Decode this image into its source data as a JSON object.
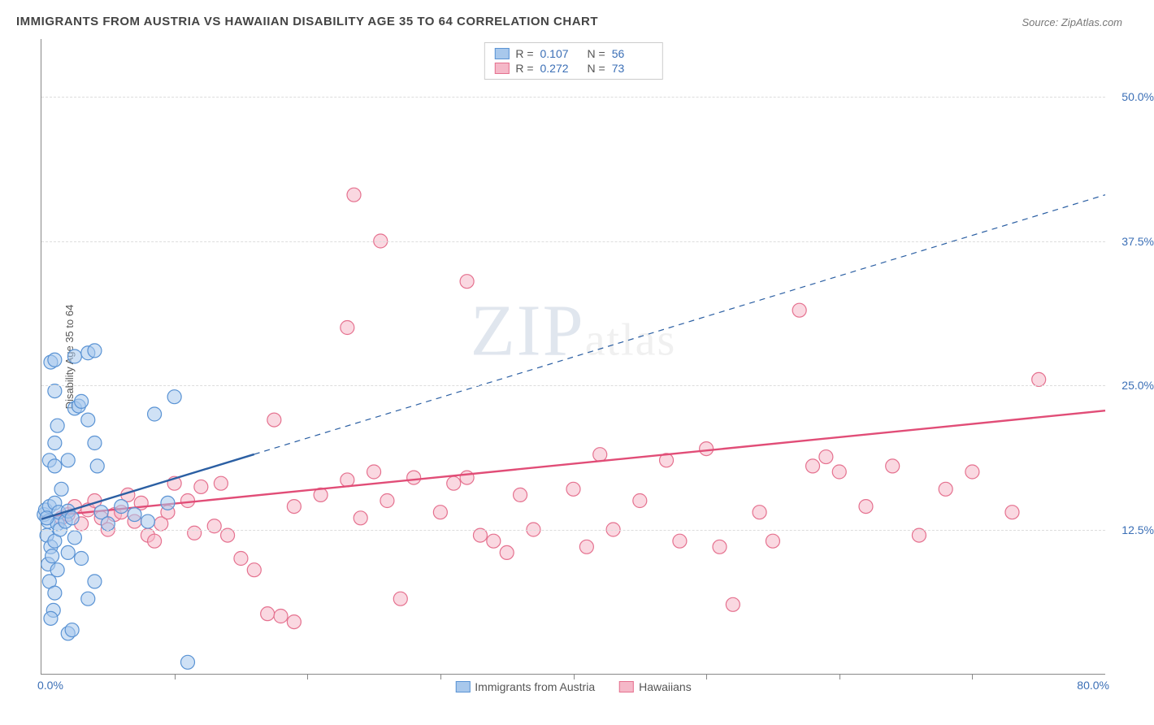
{
  "title": "IMMIGRANTS FROM AUSTRIA VS HAWAIIAN DISABILITY AGE 35 TO 64 CORRELATION CHART",
  "source": "Source: ZipAtlas.com",
  "ylabel": "Disability Age 35 to 64",
  "watermark_a": "ZIP",
  "watermark_b": "atlas",
  "chart": {
    "type": "scatter",
    "xlim": [
      0,
      80
    ],
    "ylim": [
      0,
      55
    ],
    "x_min_label": "0.0%",
    "x_max_label": "80.0%",
    "x_grid_ticks": [
      10,
      20,
      30,
      40,
      50,
      60,
      70
    ],
    "y_grid": [
      {
        "v": 12.5,
        "label": "12.5%"
      },
      {
        "v": 25.0,
        "label": "25.0%"
      },
      {
        "v": 37.5,
        "label": "37.5%"
      },
      {
        "v": 50.0,
        "label": "50.0%"
      }
    ],
    "background_color": "#ffffff",
    "grid_color": "#dddddd",
    "legend_border": "#cccccc",
    "series": [
      {
        "name": "Immigrants from Austria",
        "name_key": "series1_name",
        "fill": "#a8c8ec",
        "stroke": "#5a93d4",
        "fill_opacity": 0.55,
        "line_color": "#2b5fa3",
        "line_width": 2.4,
        "line_dash_after_x": 16,
        "marker_radius": 8.5,
        "r_label": "R =",
        "r_value": "0.107",
        "n_label": "N =",
        "n_value": "56",
        "trend": {
          "x1": 0,
          "y1": 13.4,
          "x2": 80,
          "y2": 41.5
        },
        "points": [
          [
            0.2,
            13.8
          ],
          [
            0.3,
            14.2
          ],
          [
            0.4,
            12.0
          ],
          [
            0.5,
            13.2
          ],
          [
            0.6,
            14.5
          ],
          [
            0.7,
            11.0
          ],
          [
            0.5,
            9.5
          ],
          [
            0.6,
            8.0
          ],
          [
            0.8,
            10.2
          ],
          [
            1.0,
            11.5
          ],
          [
            1.2,
            13.0
          ],
          [
            1.0,
            14.8
          ],
          [
            1.3,
            14.0
          ],
          [
            1.5,
            16.0
          ],
          [
            1.2,
            9.0
          ],
          [
            1.0,
            7.0
          ],
          [
            0.9,
            5.5
          ],
          [
            0.7,
            4.8
          ],
          [
            1.4,
            12.5
          ],
          [
            1.8,
            13.2
          ],
          [
            2.0,
            14.1
          ],
          [
            2.3,
            13.5
          ],
          [
            2.0,
            10.5
          ],
          [
            2.5,
            11.8
          ],
          [
            2.0,
            3.5
          ],
          [
            2.3,
            3.8
          ],
          [
            0.6,
            18.5
          ],
          [
            1.0,
            18.0
          ],
          [
            2.0,
            18.5
          ],
          [
            4.2,
            18.0
          ],
          [
            1.0,
            20.0
          ],
          [
            1.2,
            21.5
          ],
          [
            2.5,
            23.0
          ],
          [
            2.8,
            23.2
          ],
          [
            3.0,
            23.6
          ],
          [
            1.0,
            24.5
          ],
          [
            0.7,
            27.0
          ],
          [
            1.0,
            27.2
          ],
          [
            2.5,
            27.5
          ],
          [
            3.5,
            22.0
          ],
          [
            4.0,
            20.0
          ],
          [
            4.5,
            14.0
          ],
          [
            5.0,
            13.0
          ],
          [
            6.0,
            14.5
          ],
          [
            7.0,
            13.8
          ],
          [
            8.0,
            13.2
          ],
          [
            9.5,
            14.8
          ],
          [
            3.5,
            27.8
          ],
          [
            4.0,
            28.0
          ],
          [
            8.5,
            22.5
          ],
          [
            10.0,
            24.0
          ],
          [
            11.0,
            1.0
          ],
          [
            3.0,
            10.0
          ],
          [
            3.5,
            6.5
          ],
          [
            4.0,
            8.0
          ],
          [
            0.4,
            13.5
          ]
        ]
      },
      {
        "name": "Hawaiians",
        "name_key": "series2_name",
        "fill": "#f5b8c8",
        "stroke": "#e5718f",
        "fill_opacity": 0.55,
        "line_color": "#e14d77",
        "line_width": 2.4,
        "line_dash_after_x": 200,
        "marker_radius": 8.5,
        "r_label": "R =",
        "r_value": "0.272",
        "n_label": "N =",
        "n_value": "73",
        "trend": {
          "x1": 0,
          "y1": 13.6,
          "x2": 80,
          "y2": 22.8
        },
        "points": [
          [
            1.5,
            13.5
          ],
          [
            2.0,
            13.8
          ],
          [
            2.5,
            14.5
          ],
          [
            3.0,
            13.0
          ],
          [
            3.5,
            14.2
          ],
          [
            4.0,
            15.0
          ],
          [
            4.5,
            13.5
          ],
          [
            5.0,
            12.5
          ],
          [
            5.5,
            13.8
          ],
          [
            6.0,
            14.0
          ],
          [
            6.5,
            15.5
          ],
          [
            7.0,
            13.2
          ],
          [
            7.5,
            14.8
          ],
          [
            8.0,
            12.0
          ],
          [
            8.5,
            11.5
          ],
          [
            9.0,
            13.0
          ],
          [
            10.0,
            16.5
          ],
          [
            11.0,
            15.0
          ],
          [
            12.0,
            16.2
          ],
          [
            13.0,
            12.8
          ],
          [
            14.0,
            12.0
          ],
          [
            15.0,
            10.0
          ],
          [
            16.0,
            9.0
          ],
          [
            17.0,
            5.2
          ],
          [
            18.0,
            5.0
          ],
          [
            19.0,
            4.5
          ],
          [
            17.5,
            22.0
          ],
          [
            19.0,
            14.5
          ],
          [
            23.0,
            30.0
          ],
          [
            21.0,
            15.5
          ],
          [
            23.0,
            16.8
          ],
          [
            24.0,
            13.5
          ],
          [
            25.0,
            17.5
          ],
          [
            26.0,
            15.0
          ],
          [
            27.0,
            6.5
          ],
          [
            23.5,
            41.5
          ],
          [
            25.5,
            37.5
          ],
          [
            30.0,
            14.0
          ],
          [
            31.0,
            16.5
          ],
          [
            32.0,
            17.0
          ],
          [
            33.0,
            12.0
          ],
          [
            34.0,
            11.5
          ],
          [
            35.0,
            10.5
          ],
          [
            36.0,
            15.5
          ],
          [
            37.0,
            12.5
          ],
          [
            32.0,
            34.0
          ],
          [
            40.0,
            16.0
          ],
          [
            41.0,
            11.0
          ],
          [
            42.0,
            19.0
          ],
          [
            43.0,
            12.5
          ],
          [
            45.0,
            15.0
          ],
          [
            47.0,
            18.5
          ],
          [
            48.0,
            11.5
          ],
          [
            50.0,
            19.5
          ],
          [
            51.0,
            11.0
          ],
          [
            52.0,
            6.0
          ],
          [
            54.0,
            14.0
          ],
          [
            55.0,
            11.5
          ],
          [
            58.0,
            18.0
          ],
          [
            59.0,
            18.8
          ],
          [
            57.0,
            31.5
          ],
          [
            60.0,
            17.5
          ],
          [
            62.0,
            14.5
          ],
          [
            64.0,
            18.0
          ],
          [
            66.0,
            12.0
          ],
          [
            68.0,
            16.0
          ],
          [
            70.0,
            17.5
          ],
          [
            73.0,
            14.0
          ],
          [
            75.0,
            25.5
          ],
          [
            11.5,
            12.2
          ],
          [
            13.5,
            16.5
          ],
          [
            9.5,
            14.0
          ],
          [
            28.0,
            17.0
          ]
        ]
      }
    ]
  },
  "series1_name": "Immigrants from Austria",
  "series2_name": "Hawaiians",
  "r1_label": "R =",
  "r1_val": "0.107",
  "n1_label": "N =",
  "n1_val": "56",
  "r2_label": "R =",
  "r2_val": "0.272",
  "n2_label": "N =",
  "n2_val": "73"
}
